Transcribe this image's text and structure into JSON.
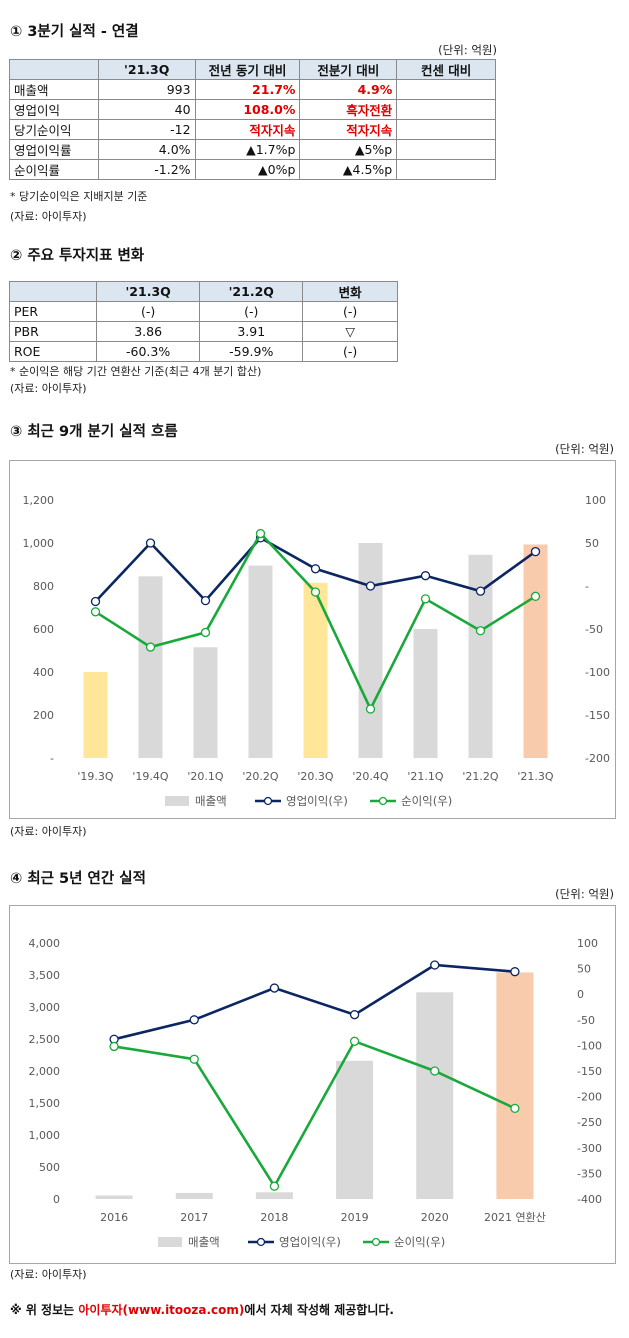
{
  "section1": {
    "title": "① 3분기 실적 - 연결",
    "unit": "(단위: 억원)",
    "headers": [
      "",
      "'21.3Q",
      "전년 동기 대비",
      "전분기 대비",
      "컨센 대비"
    ],
    "rows": [
      {
        "label": "매출액",
        "value": "993",
        "yoy": "21.7%",
        "qoq": "4.9%",
        "cons": "",
        "yoy_red": true,
        "qoq_red": true
      },
      {
        "label": "영업이익",
        "value": "40",
        "yoy": "108.0%",
        "qoq": "흑자전환",
        "cons": "",
        "yoy_red": true,
        "qoq_red": true
      },
      {
        "label": "당기순이익",
        "value": "-12",
        "yoy": "적자지속",
        "qoq": "적자지속",
        "cons": "",
        "yoy_red": true,
        "qoq_red": true
      },
      {
        "label": "영업이익률",
        "value": "4.0%",
        "yoy": "▲1.7%p",
        "qoq": "▲5%p",
        "cons": "",
        "yoy_red": false,
        "qoq_red": false
      },
      {
        "label": "순이익률",
        "value": "-1.2%",
        "yoy": "▲0%p",
        "qoq": "▲4.5%p",
        "cons": "",
        "yoy_red": false,
        "qoq_red": false
      }
    ],
    "note": "* 당기순이익은 지배지분 기준",
    "source": "(자료: 아이투자)"
  },
  "section2": {
    "title": "② 주요 투자지표 변화",
    "headers": [
      "",
      "'21.3Q",
      "'21.2Q",
      "변화"
    ],
    "rows": [
      {
        "label": "PER",
        "cur": "(-)",
        "prev": "(-)",
        "change": "(-)"
      },
      {
        "label": "PBR",
        "cur": "3.86",
        "prev": "3.91",
        "change": "▽"
      },
      {
        "label": "ROE",
        "cur": "-60.3%",
        "prev": "-59.9%",
        "change": "(-)"
      }
    ],
    "note": "* 순이익은 해당 기간 연환산 기준(최근 4개 분기 합산)",
    "source": "(자료: 아이투자)"
  },
  "section3": {
    "title": "③ 최근 9개 분기 실적 흐름",
    "unit": "(단위: 억원)",
    "source": "(자료: 아이투자)"
  },
  "section4": {
    "title": "④ 최근 5년 연간 실적",
    "unit": "(단위: 억원)",
    "source": "(자료: 아이투자)"
  },
  "footer": {
    "prefix": "※ 위 정보는 ",
    "highlight": "아이투자(www.itooza.com)",
    "suffix": "에서 자체 작성해 제공합니다."
  },
  "chart_data": [
    {
      "type": "bar",
      "categories": [
        "'19.3Q",
        "'19.4Q",
        "'20.1Q",
        "'20.2Q",
        "'20.3Q",
        "'20.4Q",
        "'21.1Q",
        "'21.2Q",
        "'21.3Q"
      ],
      "bar_colors": [
        "#ffe699",
        "#d9d9d9",
        "#d9d9d9",
        "#d9d9d9",
        "#ffe699",
        "#d9d9d9",
        "#d9d9d9",
        "#d9d9d9",
        "#f8cbad"
      ],
      "series": [
        {
          "name": "매출액",
          "axis": "left",
          "type": "bar",
          "values": [
            400,
            845,
            515,
            895,
            815,
            1000,
            600,
            945,
            993
          ],
          "color": "#d9d9d9"
        },
        {
          "name": "영업이익(우)",
          "axis": "right",
          "type": "line",
          "values": [
            -18,
            50,
            -17,
            56,
            20,
            0,
            12,
            -6,
            40
          ],
          "color": "#0b2663"
        },
        {
          "name": "순이익(우)",
          "axis": "right",
          "type": "line",
          "values": [
            -30,
            -71,
            -54,
            61,
            -7,
            -143,
            -15,
            -52,
            -12
          ],
          "color": "#19a93a"
        }
      ],
      "y_left": {
        "range": [
          0,
          1200
        ],
        "ticks": [
          "-",
          "200",
          "400",
          "600",
          "800",
          "1,000",
          "1,200"
        ]
      },
      "y_right": {
        "range": [
          -200,
          100
        ],
        "ticks": [
          "-200",
          "-150",
          "-100",
          "-50",
          "-",
          "50",
          "100"
        ]
      },
      "legend": "bottom",
      "grid": false
    },
    {
      "type": "bar",
      "categories": [
        "2016",
        "2017",
        "2018",
        "2019",
        "2020",
        "2021 연환산"
      ],
      "bar_colors": [
        "#d9d9d9",
        "#d9d9d9",
        "#d9d9d9",
        "#d9d9d9",
        "#d9d9d9",
        "#f8cbad"
      ],
      "series": [
        {
          "name": "매출액",
          "axis": "left",
          "type": "bar",
          "values": [
            55,
            95,
            105,
            2160,
            3230,
            3540
          ],
          "color": "#d9d9d9"
        },
        {
          "name": "영업이익(우)",
          "axis": "right",
          "type": "line",
          "values": [
            -88,
            -50,
            12,
            -40,
            57,
            44
          ],
          "color": "#0b2663"
        },
        {
          "name": "순이익(우)",
          "axis": "right",
          "type": "line",
          "values": [
            -102,
            -127,
            -375,
            -92,
            -150,
            -223
          ],
          "color": "#19a93a"
        }
      ],
      "y_left": {
        "range": [
          0,
          4000
        ],
        "ticks": [
          "0",
          "500",
          "1,000",
          "1,500",
          "2,000",
          "2,500",
          "3,000",
          "3,500",
          "4,000"
        ]
      },
      "y_right": {
        "range": [
          -400,
          100
        ],
        "ticks": [
          "-400",
          "-350",
          "-300",
          "-250",
          "-200",
          "-150",
          "-100",
          "-50",
          "0",
          "50",
          "100"
        ]
      },
      "legend": "bottom",
      "grid": false
    }
  ]
}
